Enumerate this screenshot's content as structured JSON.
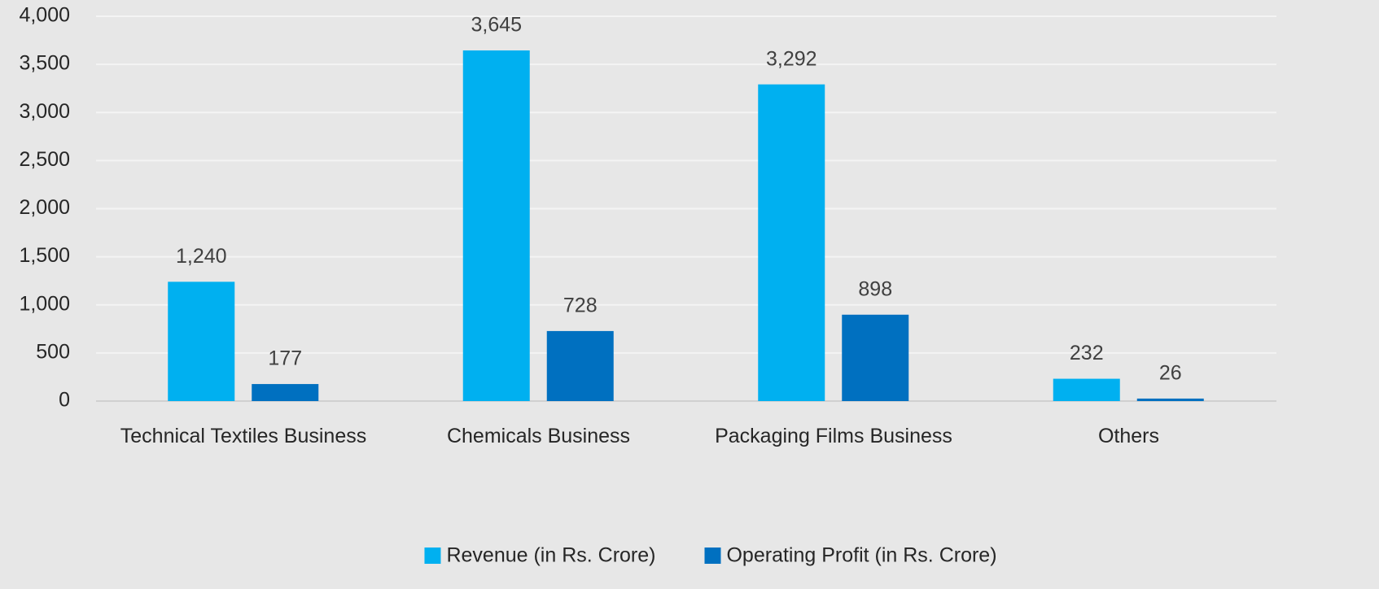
{
  "chart_data": {
    "type": "bar",
    "categories": [
      "Technical Textiles Business",
      "Chemicals Business",
      "Packaging Films Business",
      "Others"
    ],
    "series": [
      {
        "name": "Revenue (in Rs. Crore)",
        "color": "#00b0f0",
        "values": [
          1240,
          3645,
          3292,
          232
        ],
        "value_labels": [
          "1,240",
          "3,645",
          "3,292",
          "232"
        ]
      },
      {
        "name": "Operating Profit (in Rs. Crore)",
        "color": "#0070c0",
        "values": [
          177,
          728,
          898,
          26
        ],
        "value_labels": [
          "177",
          "728",
          "898",
          "26"
        ]
      }
    ],
    "ylim": [
      0,
      4000
    ],
    "yticks": [
      0,
      500,
      {
        "value": 1000,
        "label": "1,000"
      },
      {
        "value": 1500,
        "label": "1,500"
      },
      {
        "value": 2000,
        "label": "2,000"
      },
      {
        "value": 2500,
        "label": "2,500"
      },
      {
        "value": 3000,
        "label": "3,000"
      },
      {
        "value": 3500,
        "label": "3,500"
      },
      {
        "value": 4000,
        "label": "4,000"
      }
    ],
    "grid": true,
    "legend": "bottom"
  }
}
